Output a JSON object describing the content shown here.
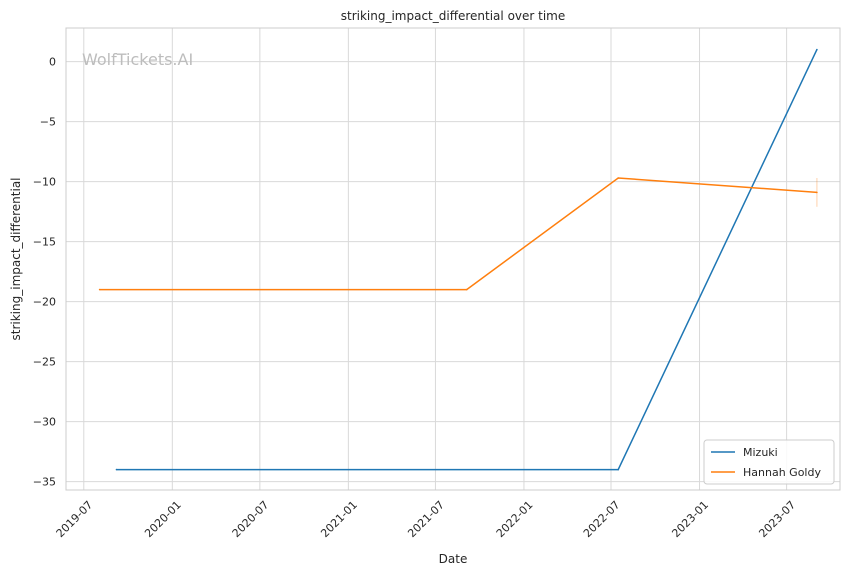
{
  "chart_data": {
    "type": "line",
    "title": "striking_impact_differential over time",
    "xlabel": "Date",
    "ylabel": "striking_impact_differential",
    "watermark": "WolfTickets.AI",
    "x_ticks": [
      "2019-07",
      "2020-01",
      "2020-07",
      "2021-01",
      "2021-07",
      "2022-01",
      "2022-07",
      "2023-01",
      "2023-07"
    ],
    "y_ticks": [
      0,
      -5,
      -10,
      -15,
      -20,
      -25,
      -30,
      -35
    ],
    "y_tick_labels": [
      "0",
      "−5",
      "−10",
      "−15",
      "−20",
      "−25",
      "−30",
      "−35"
    ],
    "xlim": [
      "2019-05-25",
      "2023-10-20"
    ],
    "ylim": [
      -35.7,
      2.8
    ],
    "grid": true,
    "legend_position": "bottom-right",
    "series": [
      {
        "name": "Mizuki",
        "color": "#1f77b4",
        "points": [
          {
            "x": "2019-09-07",
            "y": -34
          },
          {
            "x": "2022-07-16",
            "y": -34
          },
          {
            "x": "2023-09-02",
            "y": 1
          }
        ]
      },
      {
        "name": "Hannah Goldy",
        "color": "#ff7f0e",
        "points": [
          {
            "x": "2019-08-03",
            "y": -19
          },
          {
            "x": "2021-09-04",
            "y": -19
          },
          {
            "x": "2022-07-16",
            "y": -9.7
          },
          {
            "x": "2023-09-02",
            "y": -10.9
          }
        ]
      }
    ]
  }
}
